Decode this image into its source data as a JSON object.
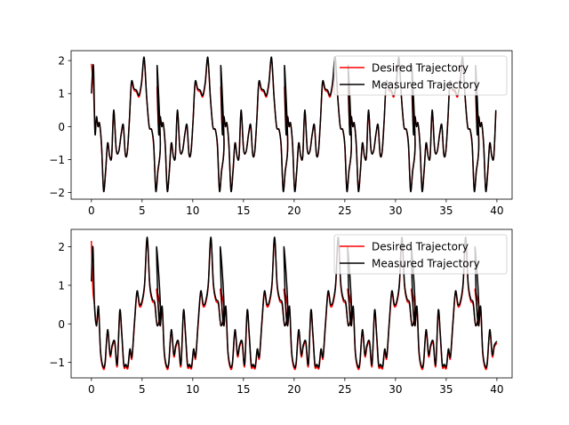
{
  "chart_data": [
    {
      "type": "line",
      "title": "",
      "xlabel": "",
      "ylabel": "",
      "xlim": [
        -2,
        41.5
      ],
      "ylim": [
        -2.2,
        2.3
      ],
      "xticks": [
        0,
        5,
        10,
        15,
        20,
        25,
        30,
        35,
        40
      ],
      "xtick_labels": [
        "0",
        "5",
        "10",
        "15",
        "20",
        "25",
        "30",
        "35",
        "40"
      ],
      "yticks": [
        -2,
        -1,
        0,
        1,
        2
      ],
      "ytick_labels": [
        "−2",
        "−1",
        "0",
        "1",
        "2"
      ],
      "grid": false,
      "legend_position": "upper right",
      "period": 6.283,
      "series": [
        {
          "name": "Desired Trajectory",
          "color": "#ff0000",
          "x": [
            0,
            0.2,
            0.35,
            0.5,
            0.65,
            0.8,
            1.0,
            1.2,
            1.4,
            1.6,
            1.8,
            2.0,
            2.2,
            2.45,
            2.7,
            2.95,
            3.15,
            3.35,
            3.55,
            3.75,
            3.95,
            4.2,
            4.45,
            4.7,
            4.95,
            5.2,
            5.45,
            5.7,
            5.95,
            6.15,
            6.35,
            6.55,
            6.8
          ],
          "y": [
            1.9,
            1.2,
            -0.1,
            0.3,
            0.0,
            0.1,
            -0.6,
            -1.9,
            -1.4,
            -0.5,
            -0.9,
            -0.9,
            0.45,
            -0.7,
            -0.75,
            -0.2,
            0.0,
            -0.85,
            -0.75,
            0.2,
            1.3,
            1.1,
            1.05,
            0.9,
            1.3,
            2.05,
            0.9,
            0.0,
            -0.1,
            -0.6,
            -1.9,
            -1.4,
            -0.5
          ]
        },
        {
          "name": "Measured Trajectory",
          "color": "#000000",
          "x": [
            0,
            0.2,
            0.35,
            0.5,
            0.65,
            0.8,
            1.0,
            1.2,
            1.4,
            1.6,
            1.8,
            2.0,
            2.2,
            2.45,
            2.7,
            2.95,
            3.15,
            3.35,
            3.55,
            3.75,
            3.95,
            4.2,
            4.45,
            4.7,
            4.95,
            5.2,
            5.45,
            5.7,
            5.95,
            6.15,
            6.35,
            6.55,
            6.8
          ],
          "y": [
            1.0,
            1.85,
            -0.2,
            0.3,
            0.0,
            0.1,
            -0.55,
            -1.95,
            -1.35,
            -0.5,
            -0.9,
            -0.9,
            0.5,
            -0.7,
            -0.75,
            -0.2,
            0.05,
            -0.85,
            -0.75,
            0.2,
            1.35,
            1.15,
            1.1,
            0.95,
            1.35,
            2.1,
            0.9,
            0.0,
            -0.1,
            -0.55,
            -1.95,
            -1.35,
            -0.5
          ]
        }
      ]
    },
    {
      "type": "line",
      "title": "",
      "xlabel": "",
      "ylabel": "",
      "xlim": [
        -2,
        41.5
      ],
      "ylim": [
        -1.4,
        2.45
      ],
      "xticks": [
        0,
        5,
        10,
        15,
        20,
        25,
        30,
        35,
        40
      ],
      "xtick_labels": [
        "0",
        "5",
        "10",
        "15",
        "20",
        "25",
        "30",
        "35",
        "40"
      ],
      "yticks": [
        -1,
        0,
        1,
        2
      ],
      "ytick_labels": [
        "−1",
        "0",
        "1",
        "2"
      ],
      "grid": false,
      "legend_position": "upper right",
      "period": 6.283,
      "series": [
        {
          "name": "Desired Trajectory",
          "color": "#ff0000",
          "x": [
            0,
            0.15,
            0.3,
            0.5,
            0.7,
            0.9,
            1.15,
            1.35,
            1.6,
            1.85,
            2.05,
            2.3,
            2.55,
            2.8,
            3.0,
            3.2,
            3.4,
            3.6,
            3.8,
            4.0,
            4.25,
            4.5,
            4.75,
            5.0,
            5.25,
            5.5,
            5.75,
            6.0,
            6.25,
            6.5,
            6.8
          ],
          "y": [
            2.15,
            0.9,
            0.5,
            -0.05,
            0.4,
            -0.75,
            -1.15,
            -1.05,
            -0.2,
            -0.85,
            -0.6,
            -0.5,
            -1.1,
            0.3,
            -0.3,
            -1.1,
            -1.1,
            -1.15,
            -0.7,
            -0.9,
            0.0,
            0.8,
            0.45,
            0.55,
            1.0,
            2.2,
            1.0,
            0.6,
            0.5,
            -0.05,
            0.4
          ]
        },
        {
          "name": "Measured Trajectory",
          "color": "#000000",
          "x": [
            0,
            0.15,
            0.3,
            0.5,
            0.7,
            0.9,
            1.15,
            1.35,
            1.6,
            1.85,
            2.05,
            2.3,
            2.55,
            2.8,
            3.0,
            3.2,
            3.4,
            3.6,
            3.8,
            4.0,
            4.25,
            4.5,
            4.75,
            5.0,
            5.25,
            5.5,
            5.75,
            6.0,
            6.25,
            6.5,
            6.8
          ],
          "y": [
            1.1,
            2.0,
            0.5,
            -0.05,
            0.45,
            -0.7,
            -1.1,
            -1.0,
            -0.15,
            -0.8,
            -0.55,
            -0.45,
            -1.05,
            0.35,
            -0.25,
            -1.05,
            -1.05,
            -1.1,
            -0.65,
            -0.85,
            0.05,
            0.85,
            0.5,
            0.6,
            1.05,
            2.25,
            1.05,
            0.65,
            0.55,
            -0.05,
            0.45
          ]
        }
      ]
    }
  ]
}
